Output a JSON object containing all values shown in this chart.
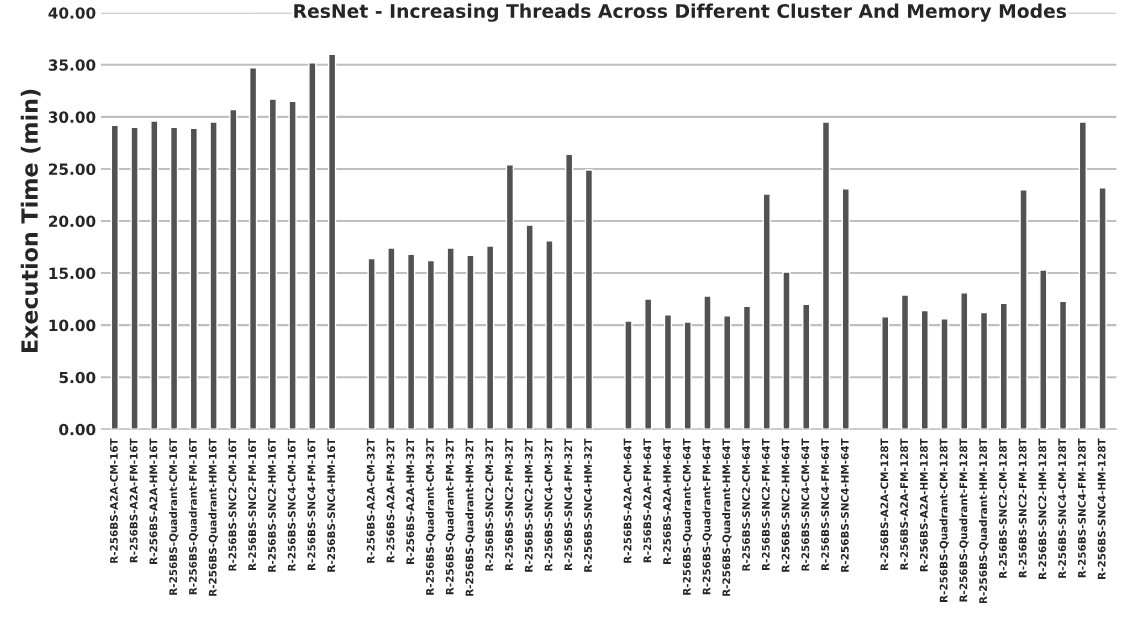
{
  "chart_data": {
    "type": "bar",
    "title": "ResNet - Increasing Threads Across Different Cluster And Memory Modes",
    "ylabel": "Execution Time (min)",
    "categories": [
      "R-256BS-A2A-CM-16T",
      "R-256BS-A2A-FM-16T",
      "R-256BS-A2A-HM-16T",
      "R-256BS-Quadrant-CM-16T",
      "R-256BS-Quadrant-FM-16T",
      "R-256BS-Quadrant-HM-16T",
      "R-256BS-SNC2-CM-16T",
      "R-256BS-SNC2-FM-16T",
      "R-256BS-SNC2-HM-16T",
      "R-256BS-SNC4-CM-16T",
      "R-256BS-SNC4-FM-16T",
      "R-256BS-SNC4-HM-16T",
      null,
      "R-256BS-A2A-CM-32T",
      "R-256BS-A2A-FM-32T",
      "R-256BS-A2A-HM-32T",
      "R-256BS-Quadrant-CM-32T",
      "R-256BS-Quadrant-FM-32T",
      "R-256BS-Quadrant-HM-32T",
      "R-256BS-SNC2-CM-32T",
      "R-256BS-SNC2-FM-32T",
      "R-256BS-SNC2-HM-32T",
      "R-256BS-SNC4-CM-32T",
      "R-256BS-SNC4-FM-32T",
      "R-256BS-SNC4-HM-32T",
      null,
      "R-256BS-A2A-CM-64T",
      "R-256BS-A2A-FM-64T",
      "R-256BS-A2A-HM-64T",
      "R-256BS-Quadrant-CM-64T",
      "R-256BS-Quadrant-FM-64T",
      "R-256BS-Quadrant-HM-64T",
      "R-256BS-SNC2-CM-64T",
      "R-256BS-SNC2-FM-64T",
      "R-256BS-SNC2-HM-64T",
      "R-256BS-SNC4-CM-64T",
      "R-256BS-SNC4-FM-64T",
      "R-256BS-SNC4-HM-64T",
      null,
      "R-256BS-A2A-CM-128T",
      "R-256BS-A2A-FM-128T",
      "R-256BS-A2A-HM-128T",
      "R-256BS-Quadrant-CM-128T",
      "R-256BS-Quadrant-FM-128T",
      "R-256BS-Quadrant-HM-128T",
      "R-256BS-SNC2-CM-128T",
      "R-256BS-SNC2-FM-128T",
      "R-256BS-SNC2-HM-128T",
      "R-256BS-SNC4-CM-128T",
      "R-256BS-SNC4-FM-128T",
      "R-256BS-SNC4-HM-128T"
    ],
    "values": [
      29.2,
      29.0,
      29.6,
      29.0,
      28.9,
      29.5,
      30.7,
      34.7,
      31.7,
      31.5,
      35.2,
      36.0,
      null,
      16.4,
      17.4,
      16.8,
      16.2,
      17.4,
      16.7,
      17.6,
      25.4,
      19.6,
      18.1,
      26.4,
      24.9,
      null,
      10.4,
      12.5,
      11.0,
      10.3,
      12.8,
      10.9,
      11.8,
      22.6,
      15.1,
      12.0,
      29.5,
      23.1,
      null,
      10.8,
      12.9,
      11.4,
      10.6,
      13.1,
      11.2,
      12.1,
      23.0,
      15.3,
      12.3,
      29.5,
      23.2
    ],
    "color": "#525252",
    "ylim": [
      0,
      40
    ],
    "yticks": [
      {
        "value": 0,
        "label": "0.00"
      },
      {
        "value": 5,
        "label": "5.00"
      },
      {
        "value": 10,
        "label": "10.00"
      },
      {
        "value": 15,
        "label": "15.00"
      },
      {
        "value": 20,
        "label": "20.00"
      },
      {
        "value": 25,
        "label": "25.00"
      },
      {
        "value": 30,
        "label": "30.00"
      },
      {
        "value": 35,
        "label": "35.00"
      },
      {
        "value": 40,
        "label": "40.00"
      }
    ],
    "grid": "y",
    "legend": false
  }
}
